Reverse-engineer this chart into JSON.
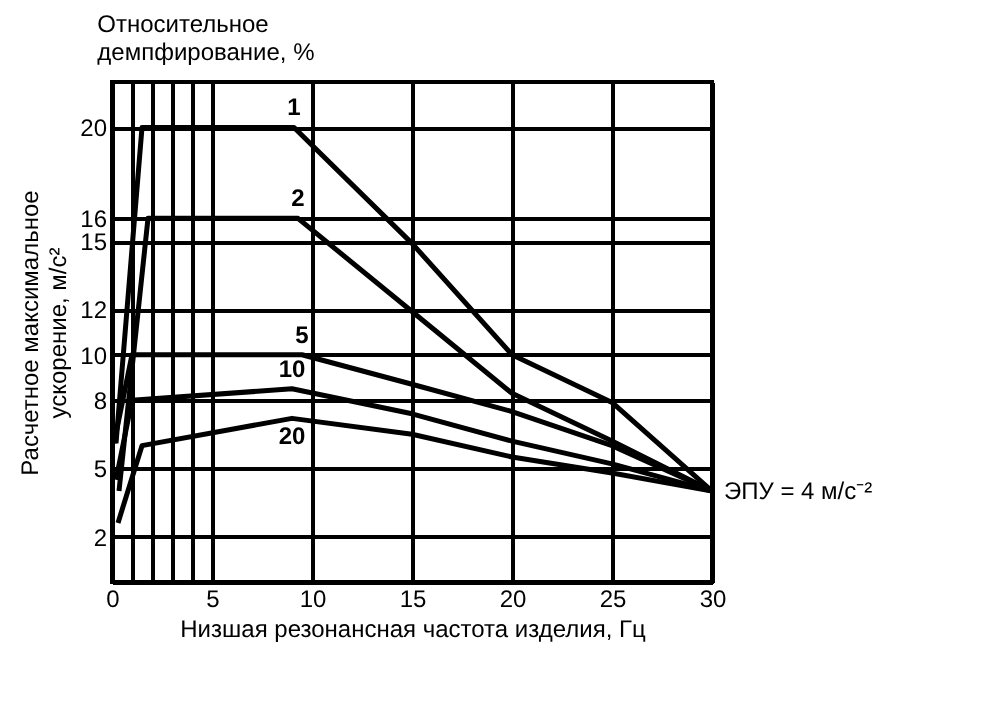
{
  "chart_data": {
    "type": "line",
    "legend_title": "Относительное демпфирование, %",
    "xlabel": "Низшая резонансная частота изделия, Гц",
    "ylabel": "Расчетное максимальное ускорение, м/с²",
    "series": [
      {
        "name": "1",
        "color": "#000000",
        "x": [
          0.2,
          1.5,
          9.1,
          15,
          20,
          25,
          30
        ],
        "values": [
          6.1,
          20,
          20,
          14.9,
          10,
          7.9,
          4
        ]
      },
      {
        "name": "2",
        "color": "#000000",
        "x": [
          0.35,
          1.8,
          9.3,
          15,
          20,
          25,
          30
        ],
        "values": [
          4,
          16,
          16,
          11.9,
          8.3,
          6.2,
          4
        ]
      },
      {
        "name": "5",
        "color": "#000000",
        "x": [
          0.1,
          1,
          9.5,
          15,
          20,
          25,
          30
        ],
        "values": [
          6.1,
          10,
          10,
          8.7,
          7.5,
          6,
          4
        ]
      },
      {
        "name": "10",
        "color": "#000000",
        "x": [
          0.2,
          1,
          9,
          15,
          20,
          25,
          30
        ],
        "values": [
          4.5,
          8,
          8.5,
          7.4,
          6.2,
          5.2,
          4
        ]
      },
      {
        "name": "20",
        "color": "#000000",
        "x": [
          0.3,
          1.5,
          9,
          15,
          20,
          25,
          30
        ],
        "values": [
          2.6,
          6,
          7.2,
          6.5,
          5.5,
          4.8,
          4
        ]
      }
    ],
    "annotations": [
      {
        "text": "ЭПУ = 4 м/с⁻²",
        "x": 30,
        "y": 4
      }
    ],
    "xlim": [
      0,
      30
    ],
    "xticks": [
      0,
      {
        "value": 1,
        "label": null
      },
      {
        "value": 2,
        "label": null
      },
      {
        "value": 3,
        "label": null
      },
      {
        "value": 4,
        "label": null
      },
      5,
      10,
      15,
      20,
      25,
      30
    ],
    "ylim": [
      0,
      22
    ],
    "yticks": [
      2,
      5,
      8,
      10,
      12,
      15,
      16,
      20
    ],
    "grid": true,
    "line_style": "solid"
  }
}
